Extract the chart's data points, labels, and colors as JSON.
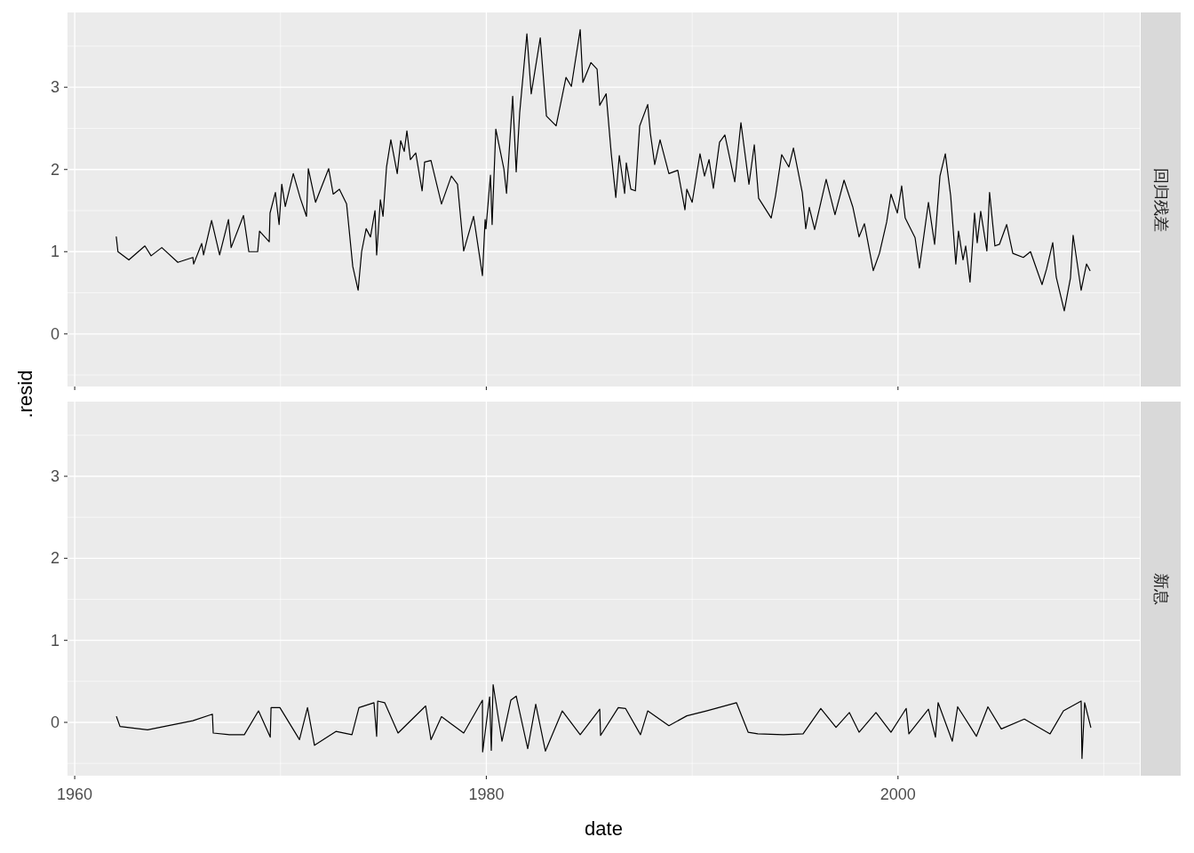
{
  "chart_data": [
    {
      "type": "line",
      "annotations": [
        "回归残差"
      ],
      "ylabel": ".resid",
      "color": "#000000",
      "grid": true,
      "tick_labels": "y",
      "line_style": "solid",
      "xlim": [
        1959.65,
        2011.75
      ],
      "xticks": [
        1960,
        {
          "value": 1970,
          "label": null
        },
        1980,
        {
          "value": 1990,
          "label": null
        },
        2000,
        {
          "value": 2010,
          "label": null
        }
      ],
      "ylim": [
        -0.64,
        3.91
      ],
      "yticks": [
        {
          "value": -0.5,
          "label": null
        },
        0,
        {
          "value": 0.5,
          "label": null
        },
        1,
        {
          "value": 1.5,
          "label": null
        },
        2,
        {
          "value": 2.5,
          "label": null
        },
        3,
        {
          "value": 3.5,
          "label": null
        }
      ],
      "x": [
        1962.02,
        1962.1,
        1962.63,
        1963.41,
        1963.71,
        1964.23,
        1965.01,
        1965.74,
        1965.78,
        1966.17,
        1966.26,
        1966.65,
        1967.04,
        1967.47,
        1967.6,
        1968.2,
        1968.46,
        1968.89,
        1968.98,
        1969.45,
        1969.49,
        1969.75,
        1969.93,
        1970.06,
        1970.23,
        1970.62,
        1970.96,
        1971.26,
        1971.35,
        1971.7,
        1972.34,
        1972.56,
        1972.86,
        1973.21,
        1973.34,
        1973.51,
        1973.77,
        1973.94,
        1974.16,
        1974.37,
        1974.59,
        1974.67,
        1974.85,
        1974.98,
        1975.15,
        1975.36,
        1975.67,
        1975.84,
        1976.01,
        1976.14,
        1976.31,
        1976.57,
        1976.88,
        1977.0,
        1977.31,
        1977.82,
        1978.3,
        1978.6,
        1978.9,
        1979.38,
        1979.81,
        1979.94,
        1979.98,
        1980.2,
        1980.28,
        1980.46,
        1980.85,
        1980.98,
        1981.28,
        1981.45,
        1981.62,
        1981.97,
        1982.18,
        1982.62,
        1982.92,
        1983.39,
        1983.87,
        1984.13,
        1984.56,
        1984.69,
        1985.08,
        1985.38,
        1985.51,
        1985.82,
        1986.07,
        1986.29,
        1986.46,
        1986.72,
        1986.8,
        1987.02,
        1987.24,
        1987.45,
        1987.84,
        1987.97,
        1988.18,
        1988.44,
        1988.87,
        1989.3,
        1989.65,
        1989.74,
        1990.0,
        1990.38,
        1990.6,
        1990.82,
        1991.03,
        1991.33,
        1991.59,
        1992.07,
        1992.37,
        1992.76,
        1993.02,
        1993.23,
        1993.84,
        1994.05,
        1994.35,
        1994.7,
        1994.92,
        1995.35,
        1995.52,
        1995.69,
        1995.95,
        1996.51,
        1996.94,
        1997.38,
        1997.81,
        1998.11,
        1998.37,
        1998.8,
        1999.1,
        1999.45,
        1999.66,
        1999.97,
        2000.18,
        2000.35,
        2000.83,
        2001.04,
        2001.48,
        2001.78,
        2002.04,
        2002.3,
        2002.56,
        2002.81,
        2002.94,
        2003.16,
        2003.29,
        2003.5,
        2003.72,
        2003.85,
        2004.02,
        2004.32,
        2004.45,
        2004.71,
        2004.93,
        2005.28,
        2005.58,
        2006.09,
        2006.44,
        2007.0,
        2007.22,
        2007.52,
        2007.69,
        2008.08,
        2008.38,
        2008.51,
        2008.9,
        2009.16,
        2009.33
      ],
      "values": [
        1.18,
        1.0,
        0.9,
        1.07,
        0.95,
        1.05,
        0.87,
        0.93,
        0.85,
        1.1,
        0.96,
        1.38,
        0.96,
        1.39,
        1.05,
        1.44,
        1.0,
        1.0,
        1.25,
        1.12,
        1.47,
        1.72,
        1.33,
        1.82,
        1.55,
        1.95,
        1.65,
        1.43,
        2.01,
        1.6,
        2.01,
        1.7,
        1.76,
        1.58,
        1.25,
        0.82,
        0.53,
        1.0,
        1.28,
        1.18,
        1.5,
        0.96,
        1.63,
        1.43,
        2.03,
        2.36,
        1.95,
        2.35,
        2.22,
        2.47,
        2.12,
        2.2,
        1.74,
        2.09,
        2.11,
        1.58,
        1.92,
        1.82,
        1.01,
        1.43,
        0.71,
        1.39,
        1.28,
        1.93,
        1.33,
        2.49,
        2.01,
        1.71,
        2.89,
        1.97,
        2.69,
        3.65,
        2.92,
        3.6,
        2.65,
        2.53,
        3.12,
        3.01,
        3.7,
        3.06,
        3.3,
        3.22,
        2.78,
        2.92,
        2.19,
        1.66,
        2.17,
        1.71,
        2.08,
        1.76,
        1.74,
        2.53,
        2.79,
        2.44,
        2.06,
        2.36,
        1.95,
        1.99,
        1.51,
        1.76,
        1.6,
        2.19,
        1.92,
        2.12,
        1.77,
        2.33,
        2.42,
        1.85,
        2.57,
        1.82,
        2.3,
        1.65,
        1.41,
        1.68,
        2.18,
        2.03,
        2.26,
        1.72,
        1.28,
        1.54,
        1.27,
        1.88,
        1.45,
        1.87,
        1.54,
        1.18,
        1.34,
        0.77,
        0.98,
        1.36,
        1.7,
        1.47,
        1.8,
        1.41,
        1.17,
        0.8,
        1.6,
        1.09,
        1.92,
        2.19,
        1.68,
        0.85,
        1.25,
        0.9,
        1.07,
        0.63,
        1.47,
        1.11,
        1.49,
        1.01,
        1.72,
        1.07,
        1.09,
        1.33,
        0.98,
        0.93,
        1.0,
        0.6,
        0.79,
        1.11,
        0.69,
        0.28,
        0.68,
        1.2,
        0.53,
        0.85,
        0.77
      ]
    },
    {
      "type": "line",
      "annotations": [
        "新息"
      ],
      "xlabel": "date",
      "color": "#000000",
      "grid": true,
      "line_style": "solid",
      "xlim": [
        1959.65,
        2011.75
      ],
      "xticks": [
        1960,
        {
          "value": 1970,
          "label": null
        },
        1980,
        {
          "value": 1990,
          "label": null
        },
        2000,
        {
          "value": 2010,
          "label": null
        }
      ],
      "ylim": [
        -0.65,
        3.91
      ],
      "yticks": [
        {
          "value": -0.5,
          "label": null
        },
        0,
        {
          "value": 0.5,
          "label": null
        },
        1,
        {
          "value": 1.5,
          "label": null
        },
        2,
        {
          "value": 2.5,
          "label": null
        },
        3,
        {
          "value": 3.5,
          "label": null
        }
      ],
      "x": [
        1962.03,
        1962.2,
        1963.54,
        1965.74,
        1966.69,
        1966.73,
        1967.51,
        1968.24,
        1968.93,
        1969.5,
        1969.54,
        1969.97,
        1970.92,
        1971.31,
        1971.65,
        1972.69,
        1973.47,
        1973.81,
        1974.54,
        1974.67,
        1974.72,
        1975.06,
        1975.71,
        1977.05,
        1977.31,
        1977.82,
        1978.9,
        1979.81,
        1979.82,
        1980.16,
        1980.24,
        1980.33,
        1980.76,
        1981.19,
        1981.45,
        1982.01,
        1982.4,
        1982.87,
        1983.69,
        1984.56,
        1985.51,
        1985.55,
        1986.41,
        1986.76,
        1987.49,
        1987.84,
        1988.87,
        1989.74,
        1990.69,
        1992.15,
        1992.72,
        1993.19,
        1994.44,
        1995.39,
        1996.25,
        1996.99,
        1997.64,
        1998.11,
        1998.93,
        1999.66,
        2000.4,
        2000.53,
        2001.48,
        2001.82,
        2001.95,
        2002.64,
        2002.9,
        2003.81,
        2004.37,
        2005.02,
        2006.14,
        2007.39,
        2008.04,
        2008.9,
        2008.94,
        2009.07,
        2009.37
      ],
      "values": [
        0.07,
        -0.05,
        -0.09,
        0.02,
        0.1,
        -0.13,
        -0.15,
        -0.15,
        0.14,
        -0.18,
        0.18,
        0.18,
        -0.21,
        0.18,
        -0.28,
        -0.11,
        -0.15,
        0.18,
        0.24,
        -0.17,
        0.26,
        0.24,
        -0.13,
        0.2,
        -0.21,
        0.07,
        -0.13,
        0.27,
        -0.36,
        0.31,
        -0.34,
        0.46,
        -0.23,
        0.27,
        0.32,
        -0.32,
        0.22,
        -0.35,
        0.14,
        -0.15,
        0.16,
        -0.16,
        0.18,
        0.17,
        -0.15,
        0.14,
        -0.04,
        0.08,
        0.14,
        0.24,
        -0.12,
        -0.14,
        -0.15,
        -0.14,
        0.17,
        -0.06,
        0.12,
        -0.12,
        0.12,
        -0.12,
        0.17,
        -0.14,
        0.16,
        -0.18,
        0.24,
        -0.23,
        0.19,
        -0.17,
        0.19,
        -0.08,
        0.04,
        -0.14,
        0.14,
        0.26,
        -0.44,
        0.24,
        -0.06
      ]
    }
  ]
}
